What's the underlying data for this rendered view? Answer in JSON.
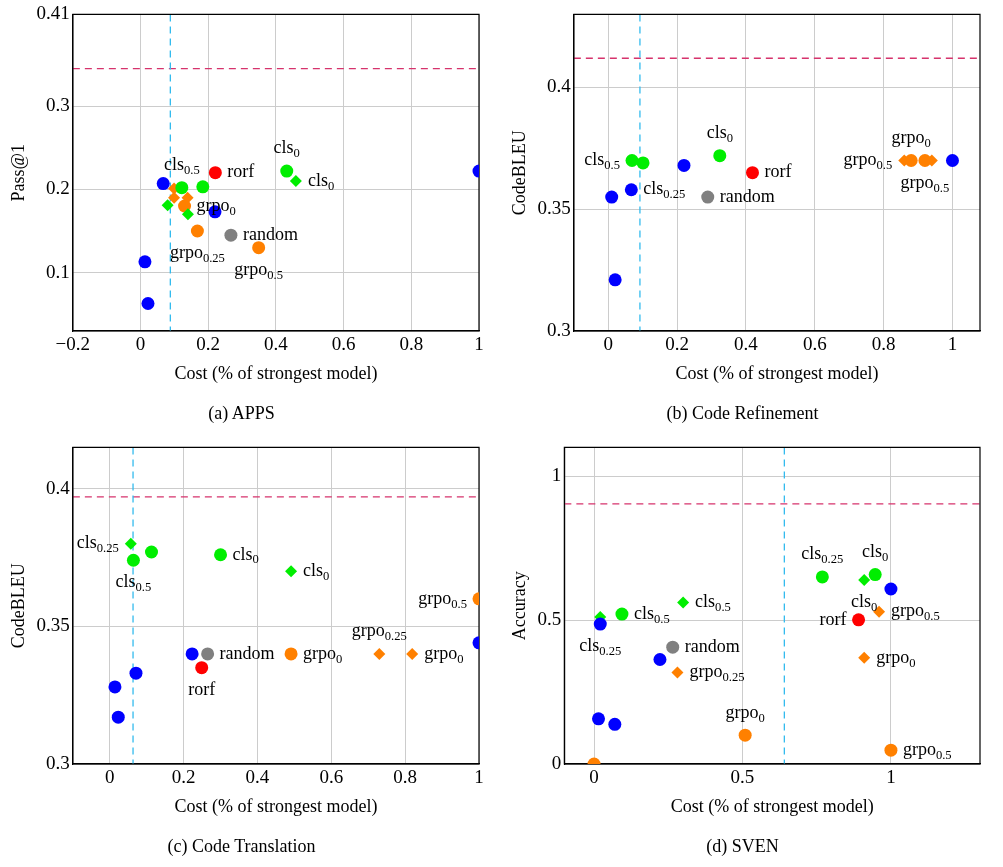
{
  "chart_data": [
    {
      "type": "scatter",
      "title": "(a) APPS",
      "xlabel": "Cost (% of strongest model)",
      "ylabel": "Pass@1",
      "xlim": [
        -0.2,
        1
      ],
      "xticks": [
        {
          "value": -0.2,
          "label": "−0.2"
        },
        0,
        0.2,
        0.4,
        0.6,
        0.8,
        1
      ],
      "ylim": [
        0.03,
        0.41
      ],
      "yticks": [
        0.1,
        0.2,
        0.3,
        0.41
      ],
      "grid": true,
      "legend": false,
      "series": [
        {
          "color": "#0000ff",
          "marker": "circle",
          "x": [
            0.067,
            0.22,
            0.013,
            0.022,
            1.0
          ],
          "values": [
            0.207,
            0.173,
            0.113,
            0.063,
            0.222
          ]
        },
        {
          "color": "#00ee00",
          "marker": "circle",
          "x": [
            0.122,
            0.184,
            0.432
          ],
          "values": [
            0.202,
            0.203,
            0.222
          ]
        },
        {
          "color": "#00ee00",
          "marker": "diamond",
          "x": [
            0.08,
            0.14,
            0.459
          ],
          "values": [
            0.181,
            0.17,
            0.21
          ]
        },
        {
          "color": "#ff8000",
          "marker": "circle",
          "x": [
            0.13,
            0.168,
            0.349
          ],
          "values": [
            0.18,
            0.15,
            0.13
          ]
        },
        {
          "color": "#ff8000",
          "marker": "diamond",
          "x": [
            0.099,
            0.099,
            0.139
          ],
          "values": [
            0.201,
            0.19,
            0.19
          ]
        },
        {
          "color": "#ff0000",
          "marker": "circle",
          "x": [
            0.221
          ],
          "values": [
            0.22
          ]
        },
        {
          "color": "#808080",
          "marker": "circle",
          "x": [
            0.267
          ],
          "values": [
            0.145
          ]
        }
      ],
      "ref_lines": [
        {
          "axis": "y",
          "value": 0.345,
          "color": "#d6336c",
          "line_style": "dashed"
        },
        {
          "axis": "x",
          "value": 0.088,
          "color": "#33bbee",
          "line_style": "dashed"
        }
      ],
      "annotations": [
        {
          "text": "rorf",
          "x": 0.221,
          "y": 0.22
        },
        {
          "text": "cls$_{0.5}$",
          "x": 0.122,
          "y": 0.202
        },
        {
          "text": "cls$_{0}$",
          "x": 0.432,
          "y": 0.222
        },
        {
          "text": "cls$_{0}$",
          "x": 0.459,
          "y": 0.21
        },
        {
          "text": "random",
          "x": 0.267,
          "y": 0.145
        },
        {
          "text": "grpo$_{0.5}$",
          "x": 0.349,
          "y": 0.13
        },
        {
          "text": "grpo$_{0.25}$",
          "x": 0.168,
          "y": 0.15
        },
        {
          "text": "grpo$_{0}$",
          "x": 0.13,
          "y": 0.18
        }
      ]
    },
    {
      "type": "scatter",
      "title": "(b) Code Refinement",
      "xlabel": "Cost (% of strongest model)",
      "ylabel": "CodeBLEU",
      "xlim": [
        -0.1,
        1.08
      ],
      "xticks": [
        0,
        0.2,
        0.4,
        0.6,
        0.8,
        1
      ],
      "ylim": [
        0.3,
        0.43
      ],
      "yticks": [
        0.3,
        0.35,
        0.4
      ],
      "grid": true,
      "legend": false,
      "series": [
        {
          "color": "#0000ff",
          "marker": "circle",
          "x": [
            0.01,
            0.02,
            0.067,
            0.22,
            1.0
          ],
          "values": [
            0.355,
            0.321,
            0.358,
            0.368,
            0.37
          ]
        },
        {
          "color": "#00ee00",
          "marker": "circle",
          "x": [
            0.069,
            0.101,
            0.324
          ],
          "values": [
            0.37,
            0.369,
            0.372
          ]
        },
        {
          "color": "#ff8000",
          "marker": "circle",
          "x": [
            0.88,
            0.92
          ],
          "values": [
            0.37,
            0.37
          ]
        },
        {
          "color": "#ff8000",
          "marker": "diamond",
          "x": [
            0.86,
            0.94
          ],
          "values": [
            0.37,
            0.37
          ]
        },
        {
          "color": "#ff0000",
          "marker": "circle",
          "x": [
            0.419
          ],
          "values": [
            0.365
          ]
        },
        {
          "color": "#808080",
          "marker": "circle",
          "x": [
            0.289
          ],
          "values": [
            0.355
          ]
        }
      ],
      "ref_lines": [
        {
          "axis": "y",
          "value": 0.412,
          "color": "#d6336c",
          "line_style": "dashed"
        },
        {
          "axis": "x",
          "value": 0.092,
          "color": "#33bbee",
          "line_style": "dashed"
        }
      ],
      "annotations": [
        {
          "text": "cls$_{0}$",
          "x": 0.324,
          "y": 0.372
        },
        {
          "text": "rorf",
          "x": 0.419,
          "y": 0.365
        },
        {
          "text": "random",
          "x": 0.289,
          "y": 0.355
        },
        {
          "text": "cls$_{0.5}$",
          "x": 0.069,
          "y": 0.37
        },
        {
          "text": "cls$_{0.25}$",
          "x": 0.067,
          "y": 0.358
        },
        {
          "text": "grpo$_{0}$",
          "x": 0.88,
          "y": 0.37
        },
        {
          "text": "grpo$_{0.5}$",
          "x": 0.92,
          "y": 0.37
        },
        {
          "text": "grpo$_{0.5}$",
          "x": 0.86,
          "y": 0.37
        }
      ]
    },
    {
      "type": "scatter",
      "title": "(c) Code Translation",
      "xlabel": "Cost (% of strongest model)",
      "ylabel": "CodeBLEU",
      "xlim": [
        -0.1,
        1
      ],
      "xticks": [
        0,
        0.2,
        0.4,
        0.6,
        0.8,
        1
      ],
      "ylim": [
        0.3,
        0.415
      ],
      "yticks": [
        0.3,
        0.35,
        0.4
      ],
      "grid": true,
      "legend": false,
      "series": [
        {
          "color": "#0000ff",
          "marker": "circle",
          "x": [
            0.014,
            0.023,
            0.071,
            0.223,
            1.0
          ],
          "values": [
            0.328,
            0.317,
            0.333,
            0.34,
            0.344
          ]
        },
        {
          "color": "#00ee00",
          "marker": "circle",
          "x": [
            0.064,
            0.113,
            0.3
          ],
          "values": [
            0.374,
            0.377,
            0.376
          ]
        },
        {
          "color": "#00ee00",
          "marker": "diamond",
          "x": [
            0.057,
            0.491
          ],
          "values": [
            0.38,
            0.37
          ]
        },
        {
          "color": "#ff8000",
          "marker": "circle",
          "x": [
            0.491,
            1.0
          ],
          "values": [
            0.34,
            0.36
          ]
        },
        {
          "color": "#ff8000",
          "marker": "diamond",
          "x": [
            0.73,
            0.819
          ],
          "values": [
            0.34,
            0.34
          ]
        },
        {
          "color": "#ff0000",
          "marker": "circle",
          "x": [
            0.249
          ],
          "values": [
            0.335
          ]
        },
        {
          "color": "#808080",
          "marker": "circle",
          "x": [
            0.265
          ],
          "values": [
            0.34
          ]
        }
      ],
      "ref_lines": [
        {
          "axis": "y",
          "value": 0.397,
          "color": "#d6336c",
          "line_style": "dashed"
        },
        {
          "axis": "x",
          "value": 0.063,
          "color": "#33bbee",
          "line_style": "dashed"
        }
      ],
      "annotations": [
        {
          "text": "cls$_{0}$",
          "x": 0.3,
          "y": 0.376
        },
        {
          "text": "cls$_{0}$",
          "x": 0.491,
          "y": 0.37
        },
        {
          "text": "cls$_{0.25}$",
          "x": 0.057,
          "y": 0.38
        },
        {
          "text": "cls$_{0.5}$",
          "x": 0.064,
          "y": 0.374
        },
        {
          "text": "random",
          "x": 0.265,
          "y": 0.34
        },
        {
          "text": "rorf",
          "x": 0.249,
          "y": 0.335
        },
        {
          "text": "grpo$_{0.25}$",
          "x": 0.73,
          "y": 0.34
        },
        {
          "text": "grpo$_{0}$",
          "x": 0.491,
          "y": 0.34
        },
        {
          "text": "grpo$_{0}$",
          "x": 0.819,
          "y": 0.34
        },
        {
          "text": "grpo$_{0.5}$",
          "x": 1.0,
          "y": 0.36
        }
      ]
    },
    {
      "type": "scatter",
      "title": "(d) SVEN",
      "xlabel": "Cost (% of strongest model)",
      "ylabel": "Accuracy",
      "xlim": [
        -0.1,
        1.3
      ],
      "xticks": [
        0,
        0.5,
        1
      ],
      "ylim": [
        0,
        1.1
      ],
      "yticks": [
        0,
        0.5,
        1
      ],
      "grid": true,
      "legend": false,
      "series": [
        {
          "color": "#0000ff",
          "marker": "circle",
          "x": [
            0.021,
            0.015,
            0.07,
            0.222,
            1.0
          ],
          "values": [
            0.486,
            0.157,
            0.138,
            0.363,
            0.608
          ]
        },
        {
          "color": "#00ee00",
          "marker": "circle",
          "x": [
            0.094,
            0.769,
            0.947
          ],
          "values": [
            0.521,
            0.65,
            0.658
          ]
        },
        {
          "color": "#00ee00",
          "marker": "diamond",
          "x": [
            0.021,
            0.3,
            0.91
          ],
          "values": [
            0.511,
            0.561,
            0.639
          ]
        },
        {
          "color": "#ff8000",
          "marker": "circle",
          "x": [
            0,
            0.509,
            1.0
          ],
          "values": [
            0,
            0.1,
            0.048
          ]
        },
        {
          "color": "#ff8000",
          "marker": "diamond",
          "x": [
            0.281,
            0.91,
            0.96
          ],
          "values": [
            0.318,
            0.369,
            0.529
          ]
        },
        {
          "color": "#ff0000",
          "marker": "circle",
          "x": [
            0.891
          ],
          "values": [
            0.501
          ]
        },
        {
          "color": "#808080",
          "marker": "circle",
          "x": [
            0.265
          ],
          "values": [
            0.406
          ]
        }
      ],
      "ref_lines": [
        {
          "axis": "y",
          "value": 0.904,
          "color": "#d6336c",
          "line_style": "dashed"
        },
        {
          "axis": "x",
          "value": 0.641,
          "color": "#33bbee",
          "line_style": "dashed"
        }
      ],
      "annotations": [
        {
          "text": "random",
          "x": 0.265,
          "y": 0.406
        },
        {
          "text": "grpo$_{0.25}$",
          "x": 0.281,
          "y": 0.318
        },
        {
          "text": "cls$_{0.5}$",
          "x": 0.3,
          "y": 0.561
        },
        {
          "text": "cls$_{0.5}$",
          "x": 0.094,
          "y": 0.521
        },
        {
          "text": "cls$_{0.25}$",
          "x": 0.021,
          "y": 0.486
        },
        {
          "text": "grpo$_{0}$",
          "x": 0.509,
          "y": 0.1
        },
        {
          "text": "grpo$_{0.5}$",
          "x": 0.96,
          "y": 0.529
        },
        {
          "text": "cls$_{0}$",
          "x": 0.947,
          "y": 0.658
        },
        {
          "text": "cls$_{0.25}$",
          "x": 0.769,
          "y": 0.65
        },
        {
          "text": "cls$_{0}$",
          "x": 0.91,
          "y": 0.639
        },
        {
          "text": "rorf",
          "x": 0.891,
          "y": 0.501
        },
        {
          "text": "grpo$_{0}$",
          "x": 0.91,
          "y": 0.369
        },
        {
          "text": "grpo$_{0.5}$",
          "x": 1.0,
          "y": 0.048
        }
      ]
    }
  ]
}
